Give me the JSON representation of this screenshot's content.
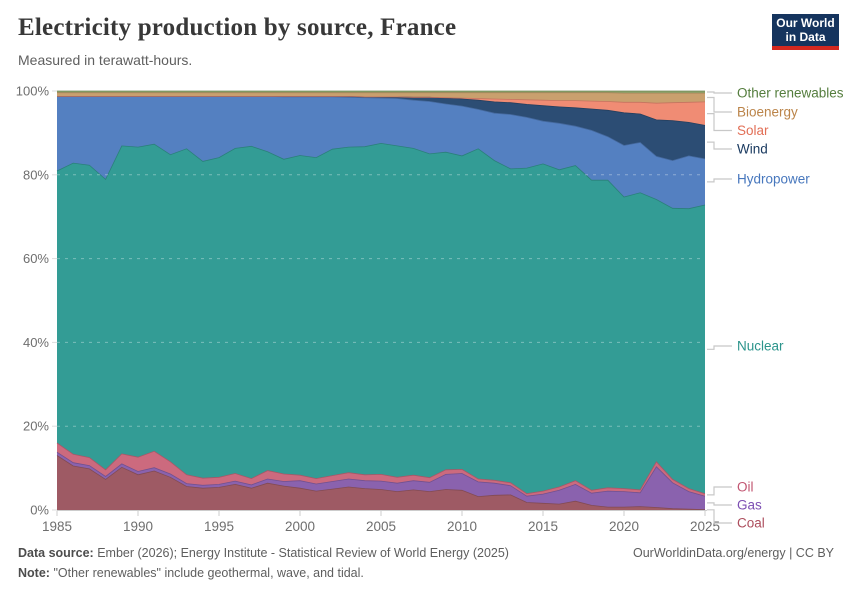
{
  "header": {
    "title": "Electricity production by source, France",
    "subtitle": "Measured in terawatt-hours."
  },
  "logo": {
    "line1": "Our World",
    "line2": "in Data",
    "bg_color": "#15345e",
    "accent_color": "#d4281f"
  },
  "chart_data": {
    "type": "area",
    "stacked": true,
    "unit": "%",
    "title": "Electricity production by source, France",
    "xlabel": "",
    "ylabel": "",
    "ylim": [
      0,
      100
    ],
    "grid": "dashed-horizontal",
    "legend_position": "right",
    "x": [
      1985,
      1986,
      1987,
      1988,
      1989,
      1990,
      1991,
      1992,
      1993,
      1994,
      1995,
      1996,
      1997,
      1998,
      1999,
      2000,
      2001,
      2002,
      2003,
      2004,
      2005,
      2006,
      2007,
      2008,
      2009,
      2010,
      2011,
      2012,
      2013,
      2014,
      2015,
      2016,
      2017,
      2018,
      2019,
      2020,
      2021,
      2022,
      2023,
      2024,
      2025
    ],
    "x_ticks": [
      "1985",
      "1990",
      "1995",
      "2000",
      "2005",
      "2010",
      "2015",
      "2020",
      "2025"
    ],
    "x_tick_years": [
      1985,
      1990,
      1995,
      2000,
      2005,
      2010,
      2015,
      2020,
      2025
    ],
    "y_ticks": [
      "0%",
      "20%",
      "40%",
      "60%",
      "80%",
      "100%"
    ],
    "y_tick_values": [
      0,
      20,
      40,
      60,
      80,
      100
    ],
    "series": [
      {
        "name": "Coal",
        "color": "#9e5a64",
        "label_color": "#ad4e5d",
        "values": [
          13.0,
          10.5,
          9.8,
          7.3,
          10.2,
          8.4,
          9.3,
          7.8,
          5.6,
          5.2,
          5.4,
          6.1,
          5.2,
          6.4,
          5.7,
          5.2,
          4.5,
          5.0,
          5.5,
          5.1,
          4.9,
          4.4,
          4.8,
          4.4,
          4.9,
          4.7,
          3.2,
          3.5,
          3.6,
          1.8,
          1.6,
          1.4,
          2.1,
          1.1,
          0.7,
          0.7,
          0.8,
          0.6,
          0.3,
          0.2,
          0.1
        ]
      },
      {
        "name": "Gas",
        "color": "#8a62ae",
        "label_color": "#7d4fb3",
        "values": [
          0.8,
          0.8,
          0.8,
          0.7,
          0.8,
          0.8,
          0.8,
          0.8,
          0.7,
          0.7,
          0.7,
          0.8,
          0.8,
          1.0,
          1.1,
          1.8,
          1.7,
          1.8,
          1.9,
          1.9,
          2.0,
          2.0,
          2.2,
          2.2,
          3.6,
          4.0,
          3.5,
          2.9,
          2.2,
          1.5,
          2.2,
          3.3,
          4.0,
          2.9,
          3.8,
          3.7,
          3.3,
          9.7,
          6.2,
          4.2,
          3.2
        ]
      },
      {
        "name": "Oil",
        "color": "#cc6a7e",
        "label_color": "#c25672",
        "values": [
          2.2,
          2.0,
          1.9,
          1.6,
          2.4,
          3.4,
          3.9,
          2.9,
          2.1,
          1.7,
          1.7,
          1.8,
          1.5,
          2.0,
          1.8,
          1.3,
          1.3,
          1.4,
          1.5,
          1.4,
          1.6,
          1.4,
          1.3,
          1.1,
          1.1,
          1.0,
          0.7,
          0.7,
          0.7,
          0.6,
          0.7,
          0.8,
          0.9,
          0.7,
          0.8,
          0.7,
          0.7,
          1.2,
          0.8,
          0.7,
          0.6
        ]
      },
      {
        "name": "Nuclear",
        "color": "#339c95",
        "label_color": "#2b948b",
        "values": [
          64.9,
          69.5,
          69.8,
          69.3,
          73.5,
          74.0,
          73.3,
          73.3,
          77.8,
          75.6,
          76.3,
          77.6,
          79.3,
          76.1,
          75.1,
          76.3,
          76.6,
          77.9,
          77.7,
          78.3,
          79.0,
          79.1,
          78.0,
          77.3,
          75.8,
          74.8,
          78.8,
          76.3,
          74.9,
          77.7,
          78.1,
          75.7,
          75.2,
          74.0,
          73.4,
          69.6,
          70.9,
          62.6,
          64.7,
          66.8,
          68.9
        ]
      },
      {
        "name": "Hydropower",
        "color": "#5480c1",
        "label_color": "#4777bd",
        "values": [
          17.8,
          15.9,
          16.4,
          19.8,
          11.8,
          12.1,
          11.4,
          13.9,
          12.5,
          15.5,
          14.6,
          12.4,
          11.9,
          13.2,
          14.9,
          14.0,
          14.5,
          12.5,
          11.9,
          11.7,
          10.8,
          11.3,
          11.5,
          12.5,
          11.5,
          11.9,
          9.4,
          11.3,
          13.0,
          12.1,
          10.2,
          11.1,
          9.4,
          11.9,
          10.4,
          12.3,
          12.0,
          10.3,
          11.4,
          12.6,
          11.0
        ]
      },
      {
        "name": "Wind",
        "color": "#2c4d74",
        "label_color": "#1a3a60",
        "values": [
          0,
          0,
          0,
          0,
          0,
          0,
          0,
          0,
          0,
          0,
          0,
          0,
          0,
          0,
          0.1,
          0.1,
          0.1,
          0.1,
          0.2,
          0.2,
          0.3,
          0.4,
          0.7,
          1.0,
          1.4,
          1.7,
          2.2,
          2.7,
          2.8,
          3.1,
          3.7,
          3.9,
          4.4,
          5.1,
          6.3,
          7.8,
          6.8,
          8.7,
          9.5,
          8.0,
          8.0
        ]
      },
      {
        "name": "Solar",
        "color": "#f08c74",
        "label_color": "#e26f56",
        "values": [
          0,
          0,
          0,
          0,
          0,
          0,
          0,
          0,
          0,
          0,
          0,
          0,
          0,
          0,
          0,
          0,
          0,
          0,
          0,
          0,
          0,
          0,
          0,
          0,
          0.1,
          0.2,
          0.4,
          0.7,
          0.8,
          1.1,
          1.3,
          1.5,
          1.7,
          1.9,
          2.1,
          2.5,
          2.8,
          4.0,
          4.3,
          4.8,
          5.6
        ]
      },
      {
        "name": "Bioenergy",
        "color": "#c9a06e",
        "label_color": "#bb8449",
        "values": [
          0.9,
          0.9,
          0.9,
          0.9,
          0.9,
          0.9,
          0.9,
          0.9,
          0.9,
          0.9,
          0.9,
          0.9,
          0.9,
          0.9,
          0.9,
          0.9,
          0.9,
          0.9,
          0.9,
          1.0,
          1.0,
          1.0,
          1.1,
          1.1,
          1.2,
          1.3,
          1.4,
          1.5,
          1.6,
          1.7,
          1.8,
          1.9,
          1.9,
          2.0,
          2.1,
          2.2,
          2.2,
          2.4,
          2.3,
          2.2,
          2.1
        ]
      },
      {
        "name": "Other renewables",
        "color": "#89a46a",
        "label_color": "#547d3d",
        "values": [
          0.4,
          0.4,
          0.4,
          0.4,
          0.4,
          0.4,
          0.4,
          0.4,
          0.4,
          0.4,
          0.4,
          0.4,
          0.4,
          0.4,
          0.4,
          0.4,
          0.4,
          0.4,
          0.4,
          0.4,
          0.4,
          0.4,
          0.4,
          0.4,
          0.4,
          0.4,
          0.4,
          0.4,
          0.4,
          0.4,
          0.4,
          0.4,
          0.4,
          0.4,
          0.4,
          0.5,
          0.5,
          0.5,
          0.5,
          0.5,
          0.5
        ]
      }
    ]
  },
  "footer": {
    "datasource_label": "Data source:",
    "datasource": "Ember (2026); Energy Institute - Statistical Review of World Energy (2025)",
    "note_label": "Note:",
    "note": "\"Other renewables\" include geothermal, wave, and tidal.",
    "link": "OurWorldinData.org/energy | CC BY"
  }
}
